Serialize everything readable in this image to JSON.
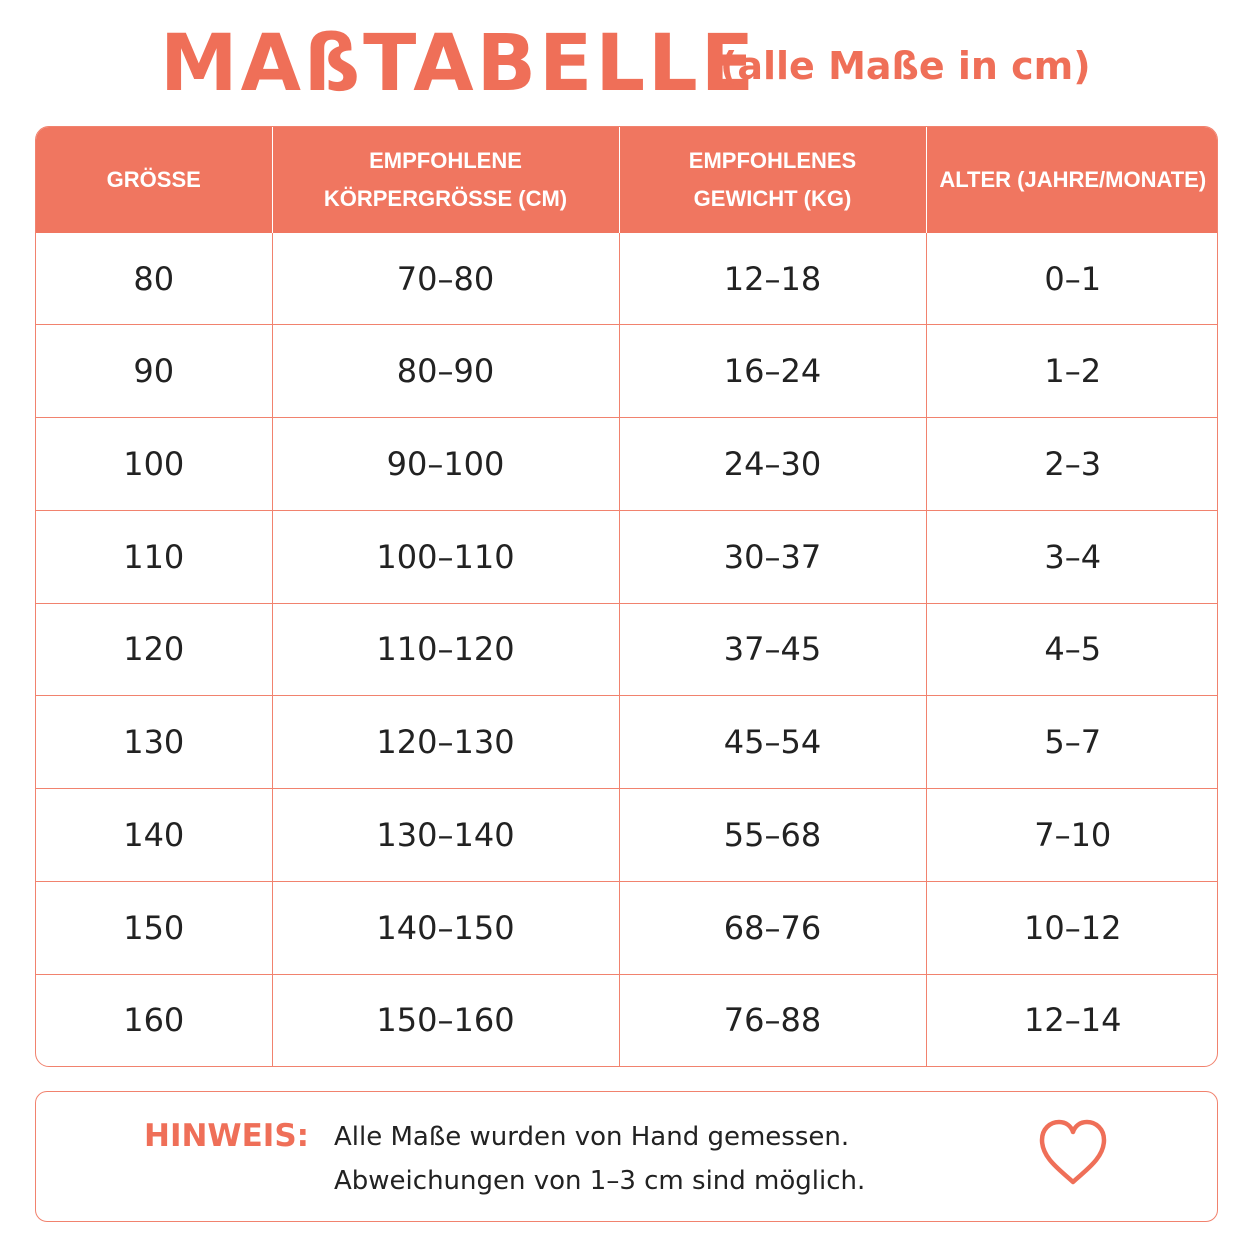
{
  "title": {
    "main": "MAßTABELLE",
    "sub": "(alle Maße in cm)"
  },
  "table": {
    "headers": [
      [
        "GRÖSSE"
      ],
      [
        "EMPFOHLENE",
        "KÖRPERGRÖSSE (CM)"
      ],
      [
        "EMPFOHLENES",
        "GEWICHT (KG)"
      ],
      [
        "ALTER (JAHRE/MONATE)"
      ]
    ],
    "rows": [
      [
        "80",
        "70–80",
        "12–18",
        "0–1"
      ],
      [
        "90",
        "80–90",
        "16–24",
        "1–2"
      ],
      [
        "100",
        "90–100",
        "24–30",
        "2–3"
      ],
      [
        "110",
        "100–110",
        "30–37",
        "3–4"
      ],
      [
        "120",
        "110–120",
        "37–45",
        "4–5"
      ],
      [
        "130",
        "120–130",
        "45–54",
        "5–7"
      ],
      [
        "140",
        "130–140",
        "55–68",
        "7–10"
      ],
      [
        "150",
        "140–150",
        "68–76",
        "10–12"
      ],
      [
        "160",
        "150–160",
        "76–88",
        "12–14"
      ]
    ]
  },
  "note": {
    "label": "HINWEIS:",
    "line1": "Alle Maße wurden von Hand gemessen.",
    "line2": "Abweichungen von 1–3 cm sind möglich.",
    "icon": "heart-icon"
  },
  "colors": {
    "accent": "#ef6f58",
    "header_bg": "#f07660",
    "border": "#f1826e",
    "text": "#222222"
  }
}
